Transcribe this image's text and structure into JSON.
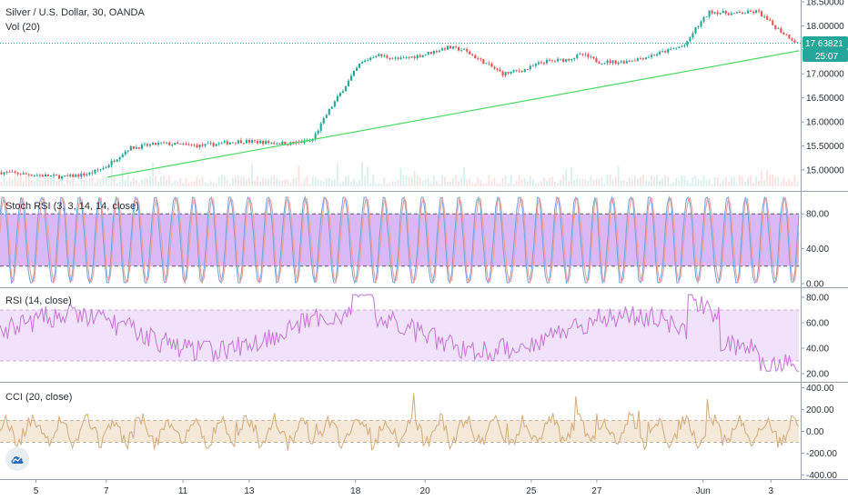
{
  "header": {
    "symbol_title": "Silver / U.S. Dollar, 30, OANDA",
    "volume_label": "Vol (20)"
  },
  "price_tags": {
    "last_price": "17.63821",
    "countdown": "25:07"
  },
  "colors": {
    "up": "#26a69a",
    "down": "#ef5350",
    "trendline": "#4cd964",
    "stoch_k": "#7aa6d6",
    "stoch_d": "#e8a0a0",
    "stoch_band": "#d9b8f5",
    "rsi_line": "#c77dd6",
    "rsi_band": "#f1e2fb",
    "cci_line": "#d4b082",
    "cci_band": "#f4e8d8",
    "price_tag": "#26a69a",
    "price_line": "#26a69a"
  },
  "chart_data": [
    {
      "id": "price",
      "type": "candlestick",
      "title": "Silver / U.S. Dollar, 30, OANDA",
      "ylim": [
        14.6,
        18.5
      ],
      "y_ticks": [
        "18.50000",
        "18.00000",
        "17.50000",
        "17.00000",
        "16.50000",
        "16.00000",
        "15.50000",
        "15.00000"
      ],
      "y_tick_values": [
        18.5,
        18.0,
        17.5,
        17.0,
        16.5,
        16.0,
        15.5,
        15.0
      ],
      "last_price": 17.63821,
      "trend_start_price": 14.85,
      "trend_end_price": 17.48,
      "path_points": [
        [
          0,
          14.95
        ],
        [
          0.04,
          14.9
        ],
        [
          0.08,
          14.85
        ],
        [
          0.11,
          14.92
        ],
        [
          0.13,
          15.05
        ],
        [
          0.16,
          15.45
        ],
        [
          0.2,
          15.55
        ],
        [
          0.25,
          15.5
        ],
        [
          0.3,
          15.6
        ],
        [
          0.36,
          15.55
        ],
        [
          0.39,
          15.6
        ],
        [
          0.41,
          16.2
        ],
        [
          0.43,
          16.7
        ],
        [
          0.45,
          17.2
        ],
        [
          0.47,
          17.4
        ],
        [
          0.5,
          17.3
        ],
        [
          0.53,
          17.4
        ],
        [
          0.56,
          17.55
        ],
        [
          0.58,
          17.5
        ],
        [
          0.61,
          17.2
        ],
        [
          0.63,
          17.0
        ],
        [
          0.66,
          17.1
        ],
        [
          0.68,
          17.25
        ],
        [
          0.71,
          17.3
        ],
        [
          0.73,
          17.4
        ],
        [
          0.75,
          17.25
        ],
        [
          0.78,
          17.25
        ],
        [
          0.81,
          17.35
        ],
        [
          0.84,
          17.5
        ],
        [
          0.86,
          17.6
        ],
        [
          0.87,
          17.9
        ],
        [
          0.89,
          18.3
        ],
        [
          0.92,
          18.25
        ],
        [
          0.95,
          18.3
        ],
        [
          0.97,
          18.0
        ],
        [
          1.0,
          17.63821
        ]
      ]
    },
    {
      "id": "volume",
      "type": "bar",
      "series": [
        {
          "name": "Vol (20)"
        }
      ]
    },
    {
      "id": "stoch_rsi",
      "type": "line",
      "title": "Stoch RSI (3, 3, 14, 14, close)",
      "ylim": [
        0,
        100
      ],
      "y_ticks": [
        "80.00",
        "40.00",
        "0.00"
      ],
      "y_tick_values": [
        80,
        40,
        0
      ],
      "band": [
        20,
        80
      ]
    },
    {
      "id": "rsi",
      "type": "line",
      "title": "RSI (14, close)",
      "ylim": [
        15,
        85
      ],
      "y_ticks": [
        "80.00",
        "60.00",
        "40.00",
        "20.00"
      ],
      "y_tick_values": [
        80,
        60,
        40,
        20
      ],
      "band": [
        30,
        70
      ]
    },
    {
      "id": "cci",
      "type": "line",
      "title": "CCI (20, close)",
      "ylim": [
        -420,
        420
      ],
      "y_ticks": [
        "400.00",
        "200.00",
        "0.00",
        "-200.00",
        "-400.00"
      ],
      "y_tick_values": [
        400,
        200,
        0,
        -200,
        -400
      ],
      "band": [
        -100,
        100
      ]
    },
    {
      "id": "time_axis",
      "type": "axis",
      "categories": [
        "5",
        "7",
        "11",
        "13",
        "18",
        "20",
        "25",
        "27",
        "Jun",
        "3"
      ],
      "x_positions": [
        0.045,
        0.133,
        0.229,
        0.312,
        0.445,
        0.532,
        0.665,
        0.747,
        0.88,
        0.965
      ]
    }
  ]
}
